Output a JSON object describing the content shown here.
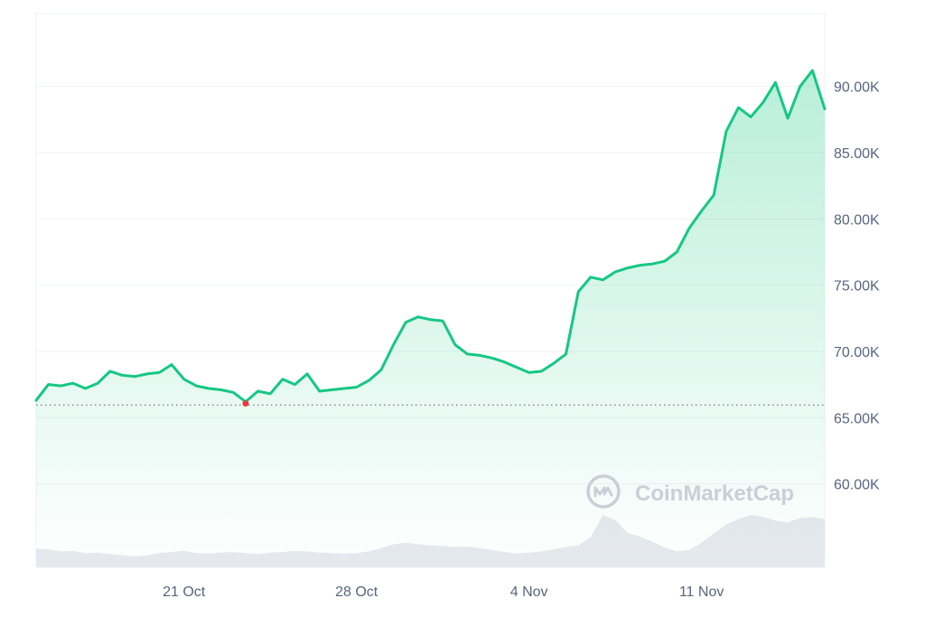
{
  "chart_data": {
    "type": "area",
    "title": "",
    "xlabel": "",
    "ylabel": "",
    "ylim": [
      53700,
      95500
    ],
    "y_ticks": [
      60000,
      65000,
      70000,
      75000,
      80000,
      85000,
      90000
    ],
    "y_tick_labels": [
      "60.00K",
      "65.00K",
      "70.00K",
      "75.00K",
      "80.00K",
      "85.00K",
      "90.00K"
    ],
    "x_range_days": [
      "2024-10-15",
      "2024-11-16"
    ],
    "x_ticks": [
      "2024-10-21",
      "2024-10-28",
      "2024-11-04",
      "2024-11-11"
    ],
    "x_tick_labels": [
      "21 Oct",
      "28 Oct",
      "4 Nov",
      "11 Nov"
    ],
    "grid": true,
    "reference_line": {
      "label": "",
      "value": 65950
    },
    "series": [
      {
        "x": [
          "2024-10-15 00:00",
          "2024-10-15 12:00",
          "2024-10-16 00:00",
          "2024-10-16 12:00",
          "2024-10-17 00:00",
          "2024-10-17 12:00",
          "2024-10-18 00:00",
          "2024-10-18 12:00",
          "2024-10-19 00:00",
          "2024-10-19 12:00",
          "2024-10-20 00:00",
          "2024-10-20 12:00",
          "2024-10-21 00:00",
          "2024-10-21 12:00",
          "2024-10-22 00:00",
          "2024-10-22 12:00",
          "2024-10-23 00:00",
          "2024-10-23 12:00",
          "2024-10-24 00:00",
          "2024-10-24 12:00",
          "2024-10-25 00:00",
          "2024-10-25 12:00",
          "2024-10-26 00:00",
          "2024-10-26 12:00",
          "2024-10-27 00:00",
          "2024-10-27 12:00",
          "2024-10-28 00:00",
          "2024-10-28 12:00",
          "2024-10-29 00:00",
          "2024-10-29 12:00",
          "2024-10-30 00:00",
          "2024-10-30 12:00",
          "2024-10-31 00:00",
          "2024-10-31 12:00",
          "2024-11-01 00:00",
          "2024-11-01 12:00",
          "2024-11-02 00:00",
          "2024-11-02 12:00",
          "2024-11-03 00:00",
          "2024-11-03 12:00",
          "2024-11-04 00:00",
          "2024-11-04 12:00",
          "2024-11-05 00:00",
          "2024-11-05 12:00",
          "2024-11-06 00:00",
          "2024-11-06 12:00",
          "2024-11-07 00:00",
          "2024-11-07 12:00",
          "2024-11-08 00:00",
          "2024-11-08 12:00",
          "2024-11-09 00:00",
          "2024-11-09 12:00",
          "2024-11-10 00:00",
          "2024-11-10 12:00",
          "2024-11-11 00:00",
          "2024-11-11 12:00",
          "2024-11-12 00:00",
          "2024-11-12 12:00",
          "2024-11-13 00:00",
          "2024-11-13 12:00",
          "2024-11-14 00:00",
          "2024-11-14 12:00",
          "2024-11-15 00:00",
          "2024-11-15 12:00",
          "2024-11-16 00:00"
        ],
        "values": [
          66300,
          67500,
          67400,
          67600,
          67200,
          67600,
          68500,
          68200,
          68100,
          68300,
          68400,
          69000,
          67900,
          67400,
          67200,
          67100,
          66900,
          66200,
          67000,
          66800,
          67900,
          67500,
          68300,
          67000,
          67100,
          67200,
          67300,
          67800,
          68600,
          70500,
          72200,
          72600,
          72400,
          72300,
          70500,
          69800,
          69700,
          69500,
          69200,
          68800,
          68400,
          68500,
          69100,
          69800,
          74500,
          75600,
          75400,
          76000,
          76300,
          76500,
          76600,
          76800,
          77500,
          79300,
          80600,
          81800,
          86600,
          88400,
          87700,
          88800,
          90300,
          87600,
          90000,
          91200,
          88300
        ]
      }
    ],
    "volume": [
      3400,
      3300,
      2900,
      3000,
      2600,
      2700,
      2400,
      2200,
      2000,
      2200,
      2600,
      2800,
      3000,
      2600,
      2500,
      2700,
      2800,
      2600,
      2400,
      2700,
      2800,
      3000,
      2900,
      2700,
      2600,
      2500,
      2600,
      2900,
      3500,
      4200,
      4500,
      4200,
      4000,
      3900,
      3700,
      3800,
      3500,
      3200,
      2800,
      2500,
      2700,
      2900,
      3300,
      3700,
      4000,
      5500,
      9500,
      8600,
      6300,
      5600,
      4700,
      3600,
      2900,
      3200,
      4500,
      6200,
      7800,
      8800,
      9600,
      9200,
      8500,
      8200,
      9000,
      9200,
      8800
    ],
    "volume_ylim": [
      0,
      14000
    ],
    "colors": {
      "line": "#16c784",
      "low_marker": "#ea3943",
      "area_top": "#16c784",
      "volume": "#e6e9ee",
      "grid": "#eff2f5",
      "reference_line": "#7a7a7a"
    }
  },
  "watermark": {
    "text": "CoinMarketCap",
    "icon": "coinmarketcap-logo-icon"
  }
}
